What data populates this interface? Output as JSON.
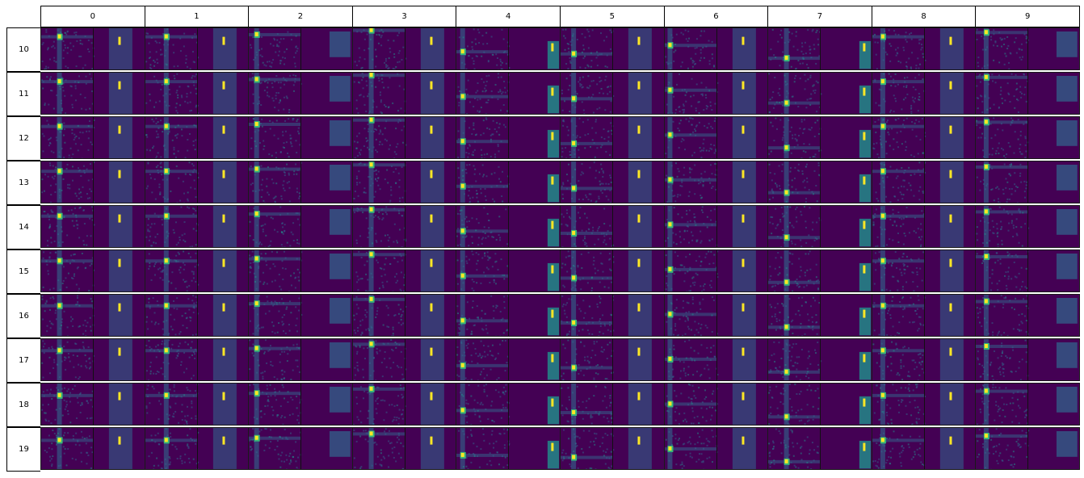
{
  "column_headers": [
    "0",
    "1",
    "2",
    "3",
    "4",
    "5",
    "6",
    "7",
    "8",
    "9"
  ],
  "row_headers": [
    "10",
    "11",
    "12",
    "13",
    "14",
    "15",
    "16",
    "17",
    "18",
    "19"
  ],
  "colors": {
    "background": "#440154",
    "low": "#3b0f52",
    "mid": "#31688e",
    "teal": "#21918c",
    "green": "#35b779",
    "high": "#fde725"
  }
}
